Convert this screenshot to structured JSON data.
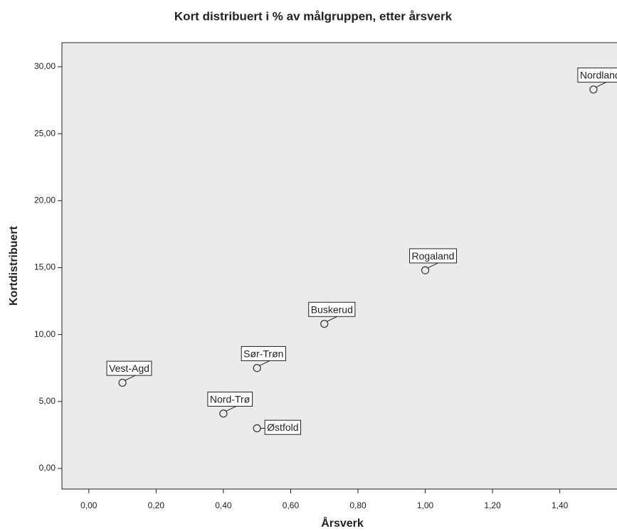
{
  "chart_data": {
    "type": "scatter",
    "title": "Kort distribuert i % av målgruppen, etter årsverk",
    "x_label": "Årsverk",
    "y_label": "Kortdistribuert",
    "labels": [
      "Nordland",
      "Rogaland",
      "Buskerud",
      "Sør-Trøn",
      "Vest-Agd",
      "Nord-Trø",
      "Østfold"
    ],
    "x": [
      1.5,
      1.0,
      0.7,
      0.5,
      0.1,
      0.4,
      0.5
    ],
    "values": [
      28.3,
      14.8,
      10.8,
      7.5,
      6.4,
      4.1,
      3.0
    ],
    "color": "#333333",
    "xlim": [
      -0.08,
      1.57
    ],
    "ylim": [
      -1.54,
      31.8
    ],
    "xticks": [
      {
        "value": 0,
        "label": "0,00"
      },
      {
        "value": 0.2,
        "label": "0,20"
      },
      {
        "value": 0.4,
        "label": "0,40"
      },
      {
        "value": 0.6,
        "label": "0,60"
      },
      {
        "value": 0.8,
        "label": "0,80"
      },
      {
        "value": 1.0,
        "label": "1,00"
      },
      {
        "value": 1.2,
        "label": "1,20"
      },
      {
        "value": 1.4,
        "label": "1,40"
      }
    ],
    "yticks": [
      {
        "value": 0,
        "label": "0,00"
      },
      {
        "value": 5,
        "label": "5,00"
      },
      {
        "value": 10,
        "label": "10,00"
      },
      {
        "value": 15,
        "label": "15,00"
      },
      {
        "value": 20,
        "label": "20,00"
      },
      {
        "value": 25,
        "label": "25,00"
      },
      {
        "value": 30,
        "label": "30,00"
      }
    ],
    "grid": false
  }
}
